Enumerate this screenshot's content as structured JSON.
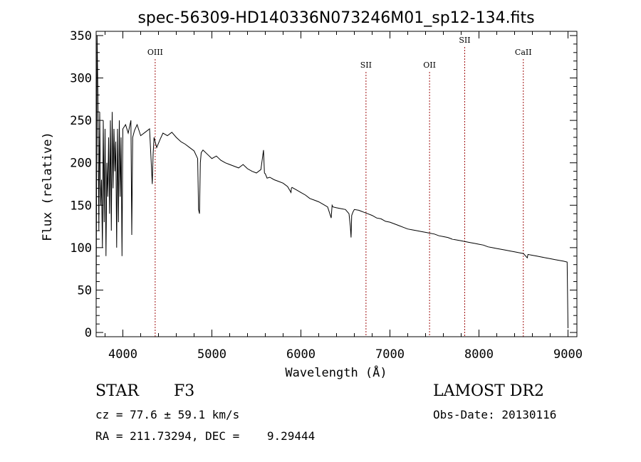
{
  "chart_data": {
    "type": "line",
    "title": "spec-56309-HD140336N073246M01_sp12-134.fits",
    "xlabel": "Wavelength (Å)",
    "ylabel": "Flux (relative)",
    "xlim": [
      3700,
      9100
    ],
    "ylim": [
      -5,
      355
    ],
    "x_ticks": [
      4000,
      5000,
      6000,
      7000,
      8000,
      9000
    ],
    "y_ticks": [
      0,
      50,
      100,
      150,
      200,
      250,
      300,
      350
    ],
    "grid": false,
    "line_color": "#000000",
    "series": [
      {
        "name": "spectrum",
        "x": [
          3700,
          3710,
          3720,
          3730,
          3740,
          3750,
          3760,
          3770,
          3780,
          3790,
          3800,
          3810,
          3820,
          3830,
          3840,
          3850,
          3860,
          3870,
          3880,
          3890,
          3900,
          3910,
          3920,
          3930,
          3940,
          3950,
          3960,
          3970,
          3980,
          3990,
          4000,
          4030,
          4060,
          4090,
          4100,
          4110,
          4130,
          4160,
          4200,
          4250,
          4300,
          4330,
          4340,
          4350,
          4380,
          4420,
          4450,
          4500,
          4550,
          4600,
          4650,
          4700,
          4750,
          4800,
          4840,
          4850,
          4861,
          4870,
          4880,
          4900,
          4950,
          5000,
          5050,
          5100,
          5150,
          5200,
          5250,
          5300,
          5350,
          5400,
          5450,
          5500,
          5550,
          5580,
          5590,
          5600,
          5620,
          5650,
          5700,
          5750,
          5800,
          5850,
          5889,
          5893,
          5900,
          5950,
          6000,
          6050,
          6100,
          6150,
          6200,
          6250,
          6300,
          6340,
          6350,
          6360,
          6400,
          6450,
          6500,
          6540,
          6555,
          6563,
          6570,
          6585,
          6600,
          6650,
          6700,
          6750,
          6800,
          6850,
          6900,
          6950,
          7000,
          7050,
          7100,
          7150,
          7200,
          7250,
          7300,
          7350,
          7400,
          7450,
          7500,
          7550,
          7600,
          7650,
          7700,
          7750,
          7800,
          7850,
          7900,
          7950,
          8000,
          8050,
          8100,
          8150,
          8200,
          8250,
          8300,
          8350,
          8400,
          8450,
          8500,
          8542,
          8550,
          8600,
          8650,
          8700,
          8750,
          8800,
          8850,
          8900,
          8950,
          8990,
          9000
        ],
        "values": [
          20,
          350,
          280,
          120,
          260,
          150,
          180,
          100,
          250,
          130,
          240,
          90,
          200,
          160,
          230,
          140,
          250,
          120,
          260,
          170,
          240,
          190,
          225,
          100,
          240,
          130,
          250,
          160,
          230,
          90,
          240,
          245,
          235,
          250,
          115,
          230,
          238,
          245,
          232,
          236,
          240,
          175,
          210,
          230,
          218,
          228,
          235,
          232,
          236,
          230,
          225,
          222,
          218,
          214,
          205,
          145,
          140,
          200,
          212,
          215,
          210,
          205,
          208,
          203,
          200,
          198,
          196,
          194,
          198,
          193,
          190,
          188,
          192,
          215,
          188,
          187,
          182,
          183,
          180,
          178,
          176,
          172,
          165,
          170,
          171,
          168,
          165,
          162,
          158,
          156,
          154,
          151,
          148,
          135,
          150,
          148,
          147,
          146,
          145,
          140,
          125,
          112,
          138,
          142,
          145,
          144,
          142,
          140,
          138,
          135,
          134,
          131,
          130,
          128,
          126,
          124,
          122,
          121,
          120,
          119,
          118,
          117,
          116,
          114,
          113,
          112,
          110,
          109,
          108,
          107,
          106,
          105,
          104,
          103,
          101,
          100,
          99,
          98,
          97,
          96,
          95,
          94,
          93,
          88,
          92,
          91,
          90,
          89,
          88,
          87,
          86,
          85,
          84,
          83,
          5
        ]
      }
    ],
    "annotations": [
      {
        "label": "OIII",
        "x": 4363,
        "level": "low"
      },
      {
        "label": "SII",
        "x": 6731,
        "level": "mid"
      },
      {
        "label": "OII",
        "x": 7445,
        "level": "mid"
      },
      {
        "label": "SII",
        "x": 7840,
        "level": "high"
      },
      {
        "label": "CaII",
        "x": 8498,
        "level": "low"
      }
    ]
  },
  "footer": {
    "object_class": "STAR",
    "subclass": "F3",
    "survey": "LAMOST DR2",
    "redshift_line": "cz = 77.6 ± 59.1 km/s",
    "obs_date_line": "Obs-Date: 20130116",
    "coords_line": "RA = 211.73294, DEC =    9.29444"
  }
}
